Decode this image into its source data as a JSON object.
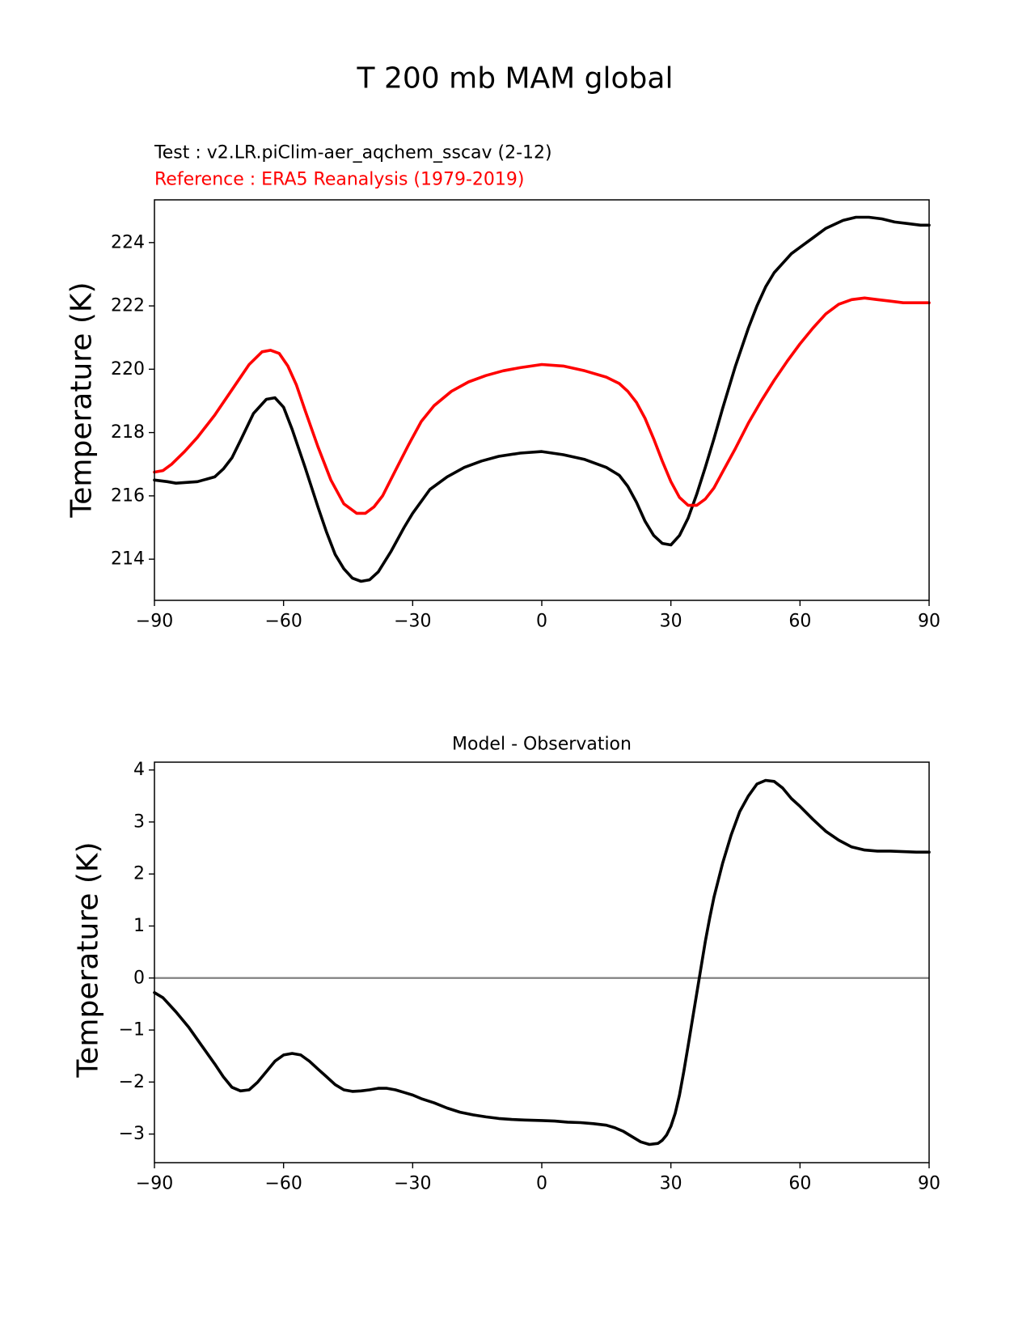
{
  "figure_title": "T 200 mb MAM global",
  "chart_data": [
    {
      "type": "line",
      "title": "",
      "test_label": "Test : v2.LR.piClim-aer_aqchem_sscav (2-12)",
      "reference_label": "Reference : ERA5 Reanalysis (1979-2019)",
      "xlabel": "",
      "ylabel": "Temperature (K)",
      "xlim": [
        -90,
        90
      ],
      "ylim": [
        212.7,
        225.35
      ],
      "xticks": [
        -90,
        -60,
        -30,
        0,
        30,
        60,
        90
      ],
      "xtick_labels": [
        "−90",
        "−60",
        "−30",
        "0",
        "30",
        "60",
        "90"
      ],
      "yticks": [
        214,
        216,
        218,
        220,
        222,
        224
      ],
      "ytick_labels": [
        "214",
        "216",
        "218",
        "220",
        "222",
        "224"
      ],
      "grid": false,
      "series": [
        {
          "role": "test",
          "color": "#000000",
          "x": [
            -90,
            -87,
            -85,
            -80,
            -76,
            -74,
            -72,
            -70,
            -67,
            -64,
            -62,
            -60,
            -58,
            -55,
            -52,
            -50,
            -48,
            -46,
            -44,
            -42,
            -40,
            -38,
            -35,
            -32,
            -30,
            -26,
            -22,
            -18,
            -14,
            -10,
            -5,
            0,
            5,
            10,
            15,
            18,
            20,
            22,
            24,
            26,
            28,
            30,
            32,
            34,
            36,
            38,
            40,
            42,
            45,
            48,
            50,
            52,
            54,
            56,
            58,
            60,
            63,
            66,
            70,
            73,
            76,
            79,
            82,
            85,
            88,
            90
          ],
          "y": [
            216.5,
            216.45,
            216.4,
            216.45,
            216.6,
            216.85,
            217.2,
            217.75,
            218.6,
            219.05,
            219.1,
            218.8,
            218.1,
            216.9,
            215.65,
            214.85,
            214.15,
            213.7,
            213.4,
            213.3,
            213.35,
            213.6,
            214.25,
            215.0,
            215.45,
            216.2,
            216.6,
            216.9,
            217.1,
            217.25,
            217.35,
            217.4,
            217.3,
            217.15,
            216.9,
            216.65,
            216.3,
            215.8,
            215.2,
            214.75,
            214.5,
            214.45,
            214.75,
            215.3,
            216.05,
            216.9,
            217.8,
            218.75,
            220.1,
            221.3,
            222.0,
            222.6,
            223.05,
            223.35,
            223.65,
            223.85,
            224.15,
            224.45,
            224.7,
            224.8,
            224.8,
            224.75,
            224.65,
            224.6,
            224.55,
            224.55
          ]
        },
        {
          "role": "reference",
          "color": "#ff0000",
          "x": [
            -90,
            -88,
            -86,
            -83,
            -80,
            -76,
            -72,
            -68,
            -65,
            -63,
            -61,
            -59,
            -57,
            -55,
            -52,
            -49,
            -46,
            -43,
            -41,
            -39,
            -37,
            -34,
            -31,
            -28,
            -25,
            -21,
            -17,
            -13,
            -9,
            -5,
            0,
            5,
            10,
            15,
            18,
            20,
            22,
            24,
            26,
            28,
            30,
            32,
            34,
            36,
            38,
            40,
            42,
            45,
            48,
            51,
            54,
            57,
            60,
            63,
            66,
            69,
            72,
            75,
            78,
            81,
            84,
            87,
            90
          ],
          "y": [
            216.75,
            216.8,
            217.0,
            217.4,
            217.85,
            218.55,
            219.35,
            220.15,
            220.55,
            220.6,
            220.5,
            220.1,
            219.5,
            218.7,
            217.55,
            216.5,
            215.75,
            215.45,
            215.45,
            215.65,
            216.0,
            216.8,
            217.6,
            218.35,
            218.85,
            219.3,
            219.6,
            219.8,
            219.95,
            220.05,
            220.15,
            220.1,
            219.95,
            219.75,
            219.55,
            219.3,
            218.95,
            218.45,
            217.8,
            217.1,
            216.45,
            215.95,
            215.7,
            215.7,
            215.9,
            216.25,
            216.75,
            217.5,
            218.3,
            219.0,
            219.65,
            220.25,
            220.8,
            221.3,
            221.75,
            222.05,
            222.2,
            222.25,
            222.2,
            222.15,
            222.1,
            222.1,
            222.1
          ]
        }
      ]
    },
    {
      "type": "line",
      "title": "Model - Observation",
      "xlabel": "",
      "ylabel": "Temperature (K)",
      "xlim": [
        -90,
        90
      ],
      "ylim": [
        -3.55,
        4.15
      ],
      "xticks": [
        -90,
        -60,
        -30,
        0,
        30,
        60,
        90
      ],
      "xtick_labels": [
        "−90",
        "−60",
        "−30",
        "0",
        "30",
        "60",
        "90"
      ],
      "yticks": [
        -3,
        -2,
        -1,
        0,
        1,
        2,
        3,
        4
      ],
      "ytick_labels": [
        "−3",
        "−2",
        "−1",
        "0",
        "1",
        "2",
        "3",
        "4"
      ],
      "grid": false,
      "zero_line": {
        "y": 0,
        "color": "#808080"
      },
      "series": [
        {
          "role": "difference",
          "color": "#000000",
          "x": [
            -90,
            -88,
            -85,
            -82,
            -79,
            -76,
            -74,
            -72,
            -70,
            -68,
            -66,
            -64,
            -62,
            -60,
            -58,
            -56,
            -54,
            -52,
            -50,
            -48,
            -46,
            -44,
            -42,
            -40,
            -38,
            -36,
            -34,
            -32,
            -30,
            -28,
            -25,
            -22,
            -19,
            -16,
            -13,
            -10,
            -7,
            -4,
            0,
            3,
            6,
            9,
            12,
            15,
            17,
            19,
            21,
            23,
            25,
            27,
            28,
            29,
            30,
            31,
            32,
            33,
            34,
            35,
            36,
            37,
            38,
            39,
            40,
            42,
            44,
            46,
            48,
            50,
            52,
            54,
            56,
            58,
            60,
            63,
            66,
            69,
            72,
            75,
            78,
            81,
            84,
            87,
            90
          ],
          "y": [
            -0.28,
            -0.38,
            -0.65,
            -0.95,
            -1.3,
            -1.65,
            -1.9,
            -2.1,
            -2.17,
            -2.15,
            -2.0,
            -1.8,
            -1.6,
            -1.48,
            -1.45,
            -1.48,
            -1.6,
            -1.75,
            -1.9,
            -2.05,
            -2.15,
            -2.18,
            -2.17,
            -2.15,
            -2.12,
            -2.12,
            -2.15,
            -2.2,
            -2.25,
            -2.32,
            -2.4,
            -2.5,
            -2.58,
            -2.63,
            -2.67,
            -2.7,
            -2.72,
            -2.73,
            -2.74,
            -2.75,
            -2.77,
            -2.78,
            -2.8,
            -2.83,
            -2.88,
            -2.95,
            -3.05,
            -3.15,
            -3.2,
            -3.18,
            -3.12,
            -3.02,
            -2.85,
            -2.6,
            -2.25,
            -1.8,
            -1.3,
            -0.8,
            -0.3,
            0.2,
            0.7,
            1.15,
            1.55,
            2.2,
            2.75,
            3.2,
            3.5,
            3.73,
            3.8,
            3.78,
            3.65,
            3.45,
            3.3,
            3.05,
            2.82,
            2.65,
            2.52,
            2.46,
            2.44,
            2.44,
            2.43,
            2.42,
            2.42
          ]
        }
      ]
    }
  ]
}
